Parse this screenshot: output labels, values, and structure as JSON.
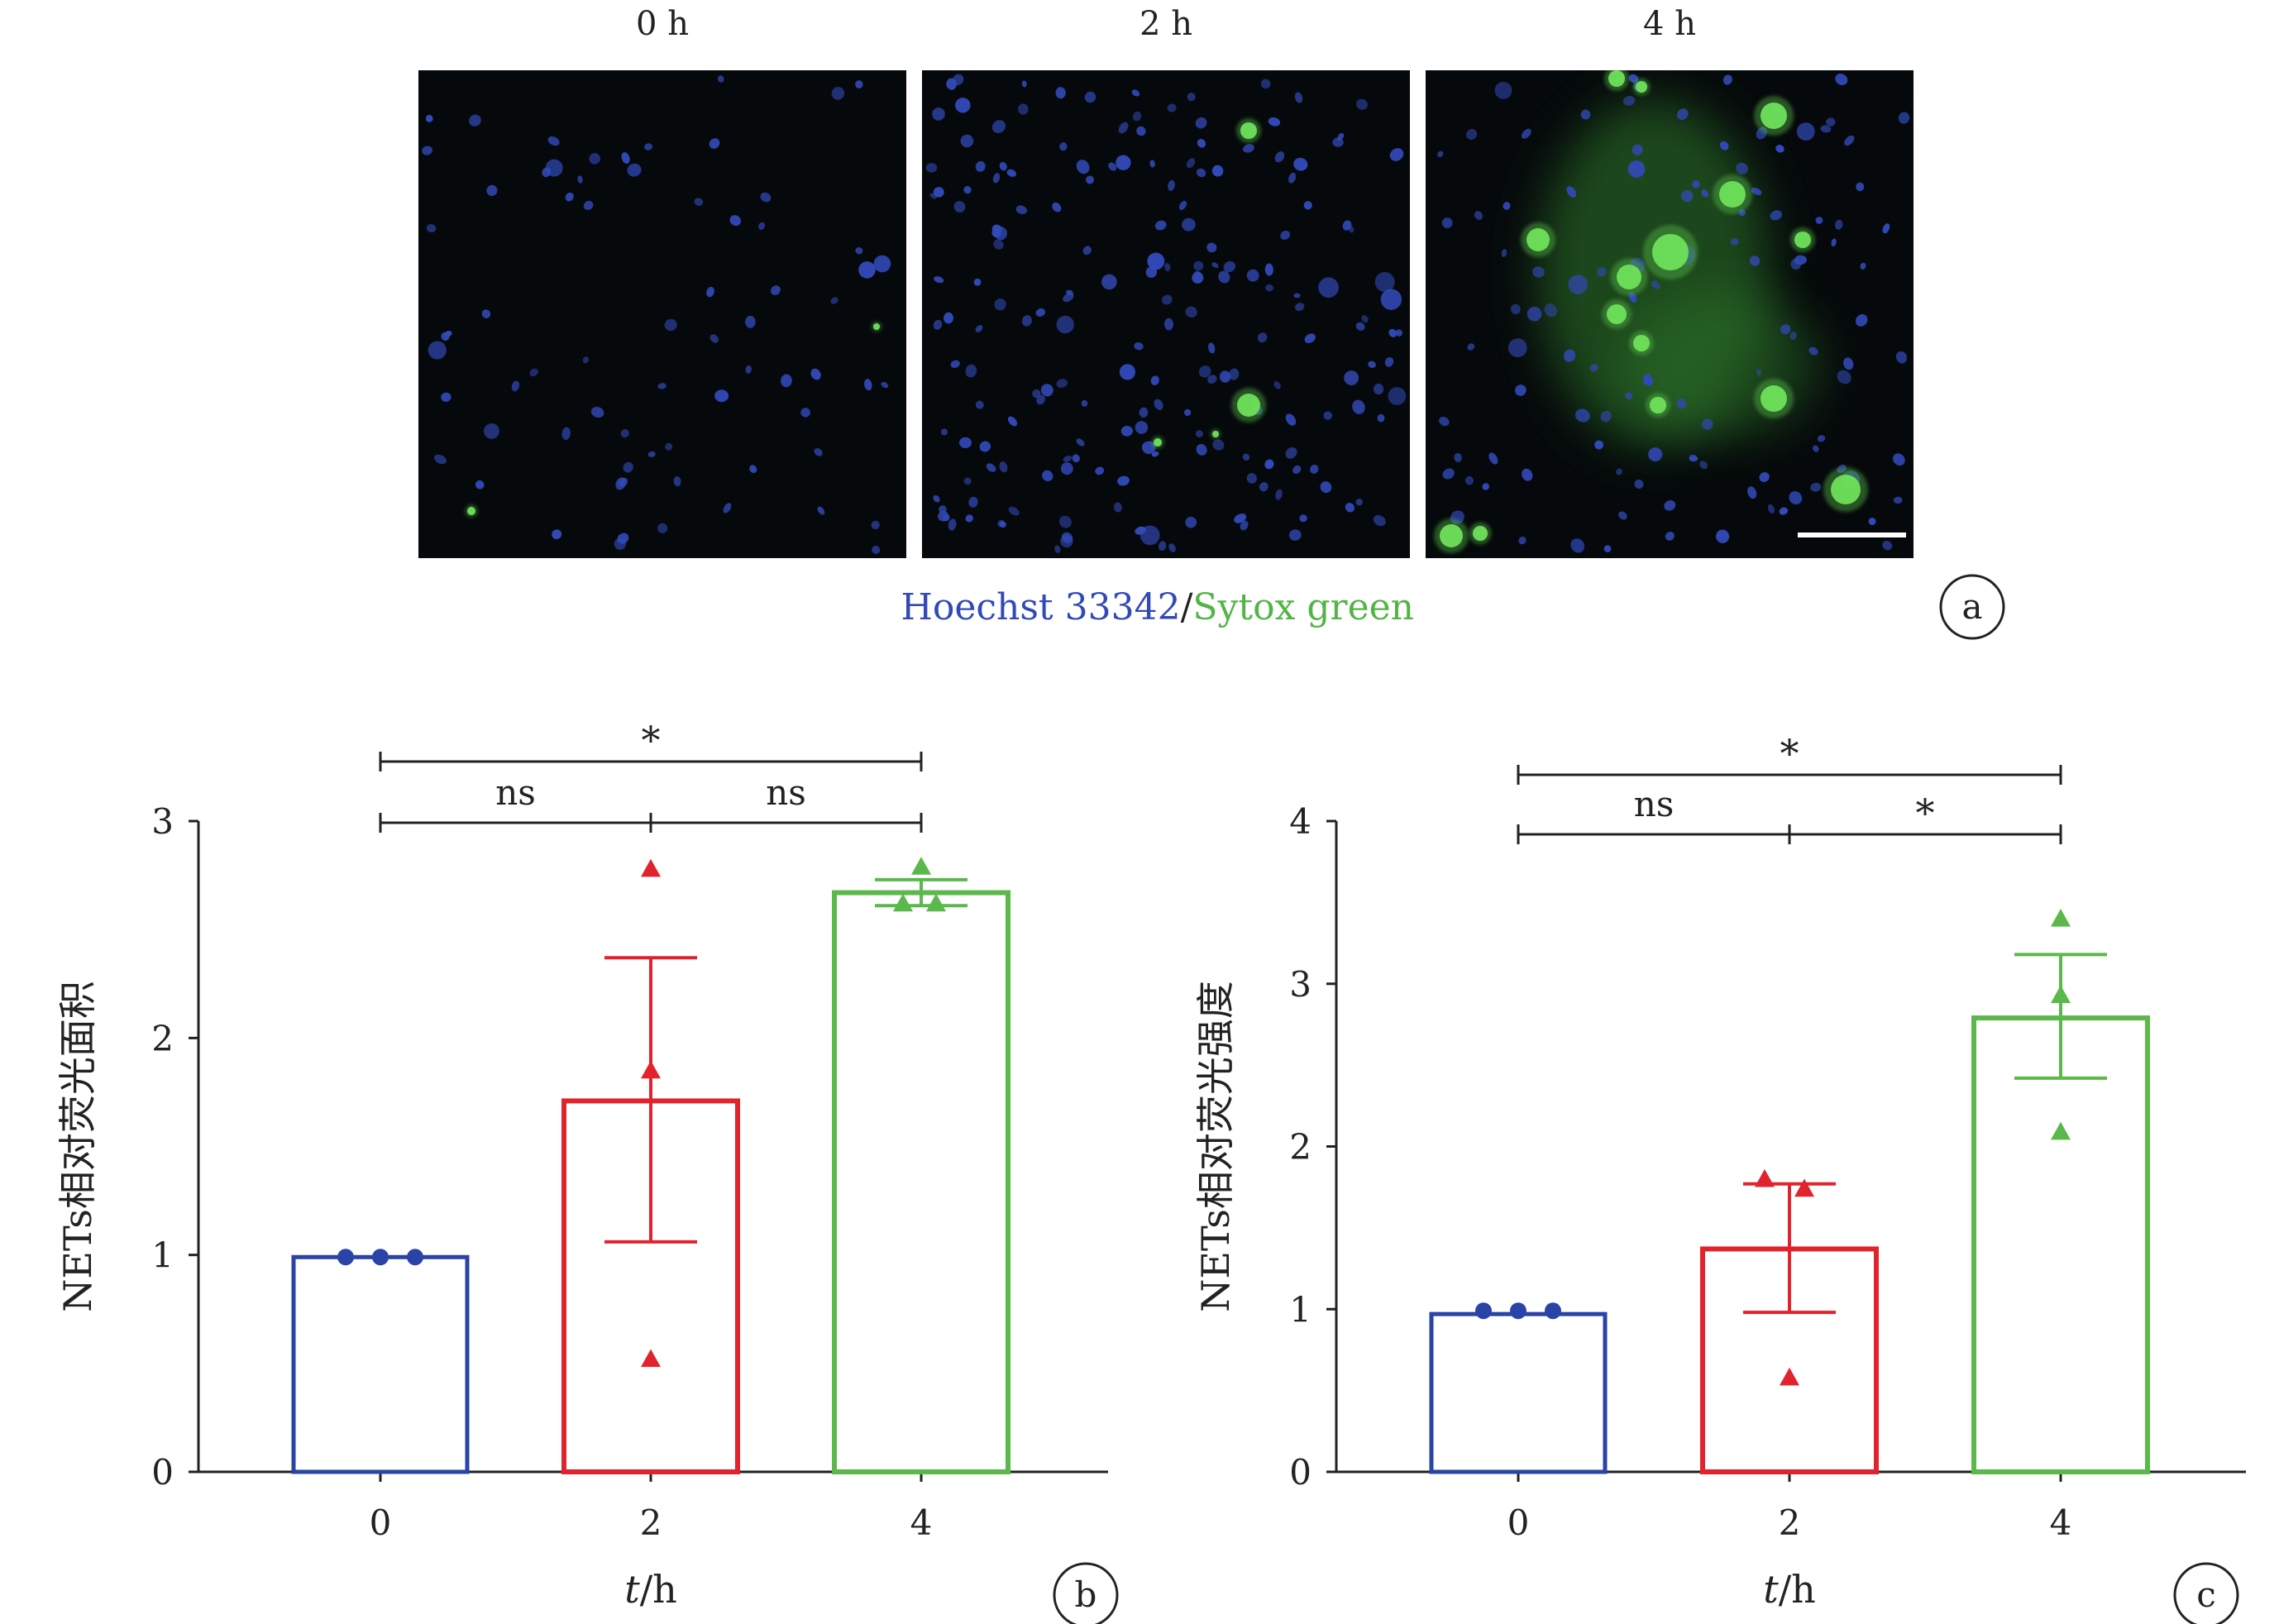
{
  "panel_a": {
    "time_labels": [
      "0 h",
      "2 h",
      "4 h"
    ],
    "legend": {
      "stain_blue": "Hoechst 33342",
      "separator": "/",
      "stain_green": "Sytox green"
    },
    "panel_letter": "a"
  },
  "colors": {
    "blue": "#2a43a6",
    "red": "#e1232d",
    "green": "#5bb84a",
    "axis": "#222222",
    "stain_blue": "#3249b8",
    "stain_green": "#52b447"
  },
  "chart_data": [
    {
      "type": "bar",
      "panel_letter": "b",
      "categories": [
        "0",
        "2",
        "4"
      ],
      "xlabel_italic": "t",
      "xlabel_rest": "/h",
      "ylabel": "NETs相对荧光面积",
      "ylim": [
        0,
        3
      ],
      "yticks": [
        "0",
        "1",
        "2",
        "3"
      ],
      "grid": false,
      "values": [
        0.99,
        1.71,
        2.67
      ],
      "error": [
        [
          0.99,
          0.99
        ],
        [
          1.06,
          2.37
        ],
        [
          2.61,
          2.73
        ]
      ],
      "points": [
        [
          0.99,
          0.99,
          0.99
        ],
        [
          2.78,
          1.85,
          0.52
        ],
        [
          2.79,
          2.62,
          2.62
        ]
      ],
      "markers": [
        "circle",
        "triangle",
        "triangle"
      ],
      "significance": [
        {
          "from": 0,
          "to": 2,
          "label": "*",
          "level": 2
        },
        {
          "from": 0,
          "to": 1,
          "label": "ns",
          "level": 1
        },
        {
          "from": 1,
          "to": 2,
          "label": "ns",
          "level": 1
        }
      ]
    },
    {
      "type": "bar",
      "panel_letter": "c",
      "categories": [
        "0",
        "2",
        "4"
      ],
      "xlabel_italic": "t",
      "xlabel_rest": "/h",
      "ylabel": "NETs相对荧光强度",
      "ylim": [
        0,
        4
      ],
      "yticks": [
        "0",
        "1",
        "2",
        "3",
        "4"
      ],
      "grid": false,
      "values": [
        0.97,
        1.37,
        2.79
      ],
      "error": [
        [
          0.97,
          0.97
        ],
        [
          0.98,
          1.77
        ],
        [
          2.42,
          3.18
        ]
      ],
      "points": [
        [
          0.99,
          0.99,
          0.99
        ],
        [
          1.8,
          1.74,
          0.58
        ],
        [
          3.4,
          2.93,
          2.09
        ]
      ],
      "markers": [
        "circle",
        "triangle",
        "triangle"
      ],
      "significance": [
        {
          "from": 0,
          "to": 2,
          "label": "*",
          "level": 2
        },
        {
          "from": 0,
          "to": 1,
          "label": "ns",
          "level": 1
        },
        {
          "from": 1,
          "to": 2,
          "label": "*",
          "level": 1
        }
      ]
    }
  ]
}
